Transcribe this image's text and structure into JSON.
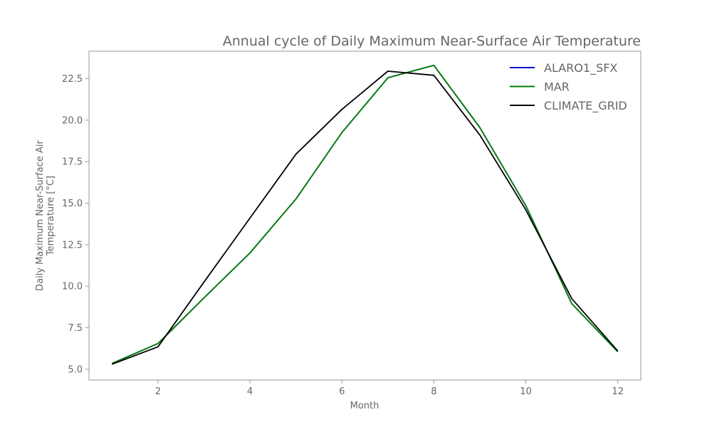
{
  "chart_data": {
    "type": "line",
    "title": "Annual cycle of Daily Maximum Near-Surface Air Temperature",
    "xlabel": "Month",
    "ylabel_lines": [
      "Daily Maximum Near-Surface Air",
      "Temperature [°C]"
    ],
    "x": [
      1,
      2,
      3,
      4,
      5,
      6,
      7,
      8,
      9,
      10,
      11,
      12
    ],
    "xlim": [
      0.5,
      12.5
    ],
    "ylim": [
      4.35,
      24.15
    ],
    "xticks": [
      2,
      4,
      6,
      8,
      10,
      12
    ],
    "yticks": [
      5.0,
      7.5,
      10.0,
      12.5,
      15.0,
      17.5,
      20.0,
      22.5
    ],
    "x_tick_labels": [
      "2",
      "4",
      "6",
      "8",
      "10",
      "12"
    ],
    "y_tick_labels": [
      "5.0",
      "7.5",
      "10.0",
      "12.5",
      "15.0",
      "17.5",
      "20.0",
      "22.5"
    ],
    "grid": false,
    "legend_position": "top-right",
    "series": [
      {
        "name": "ALARO1_SFX",
        "color": "#0000cc",
        "values": [
          5.35,
          6.55,
          9.3,
          12.0,
          15.25,
          19.25,
          22.55,
          23.3,
          19.55,
          14.85,
          8.95,
          6.05
        ]
      },
      {
        "name": "MAR",
        "color": "#008000",
        "values": [
          5.35,
          6.55,
          9.3,
          12.0,
          15.25,
          19.25,
          22.55,
          23.3,
          19.55,
          14.85,
          8.95,
          6.05
        ]
      },
      {
        "name": "CLIMATE_GRID",
        "color": "#000000",
        "values": [
          5.3,
          6.35,
          10.25,
          14.1,
          17.95,
          20.65,
          22.95,
          22.7,
          19.1,
          14.6,
          9.25,
          6.1
        ]
      }
    ]
  }
}
